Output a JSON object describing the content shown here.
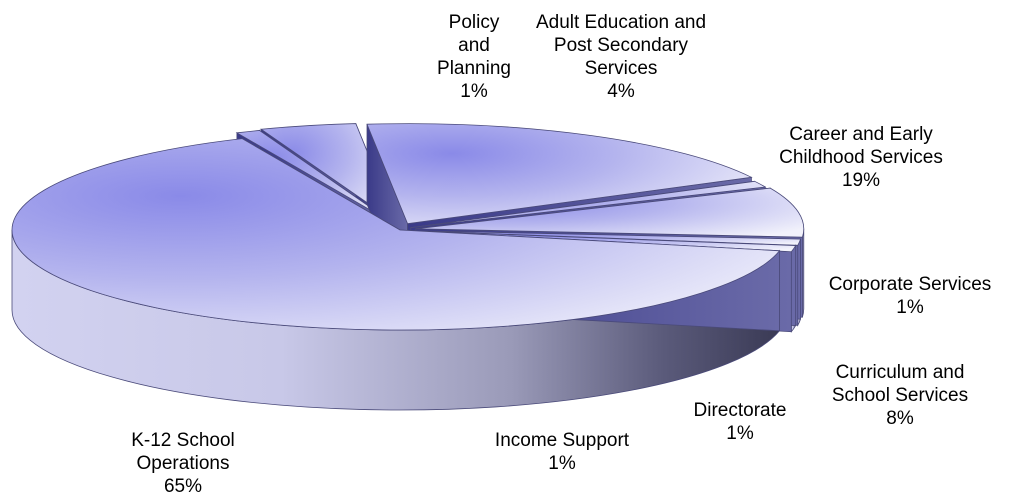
{
  "chart_data": {
    "type": "pie",
    "style": "3d-exploded",
    "slices": [
      {
        "name": "Policy and Planning",
        "label_lines": [
          "Policy",
          "and",
          "Planning"
        ],
        "value_label": "1%",
        "value": 1
      },
      {
        "name": "Adult Education and Post Secondary Services",
        "label_lines": [
          "Adult Education and",
          "Post Secondary",
          "Services"
        ],
        "value_label": "4%",
        "value": 4
      },
      {
        "name": "Career and Early Childhood Services",
        "label_lines": [
          "Career and Early",
          "Childhood Services"
        ],
        "value_label": "19%",
        "value": 19
      },
      {
        "name": "Corporate Services",
        "label_lines": [
          "Corporate Services"
        ],
        "value_label": "1%",
        "value": 1
      },
      {
        "name": "Curriculum and School Services",
        "label_lines": [
          "Curriculum and",
          "School Services"
        ],
        "value_label": "8%",
        "value": 8
      },
      {
        "name": "Directorate",
        "label_lines": [
          "Directorate"
        ],
        "value_label": "1%",
        "value": 1
      },
      {
        "name": "Income Support",
        "label_lines": [
          "Income Support"
        ],
        "value_label": "1%",
        "value": 1
      },
      {
        "name": "K-12 School Operations",
        "label_lines": [
          "K-12 School",
          "Operations"
        ],
        "value_label": "65%",
        "value": 65
      }
    ],
    "colors": {
      "top_light": "#e8e8f6",
      "top_dark": "#8888e8",
      "side_light": "#d0d0f0",
      "side_dark": "#3a3a6a",
      "edge": "#4a4a7a"
    }
  }
}
